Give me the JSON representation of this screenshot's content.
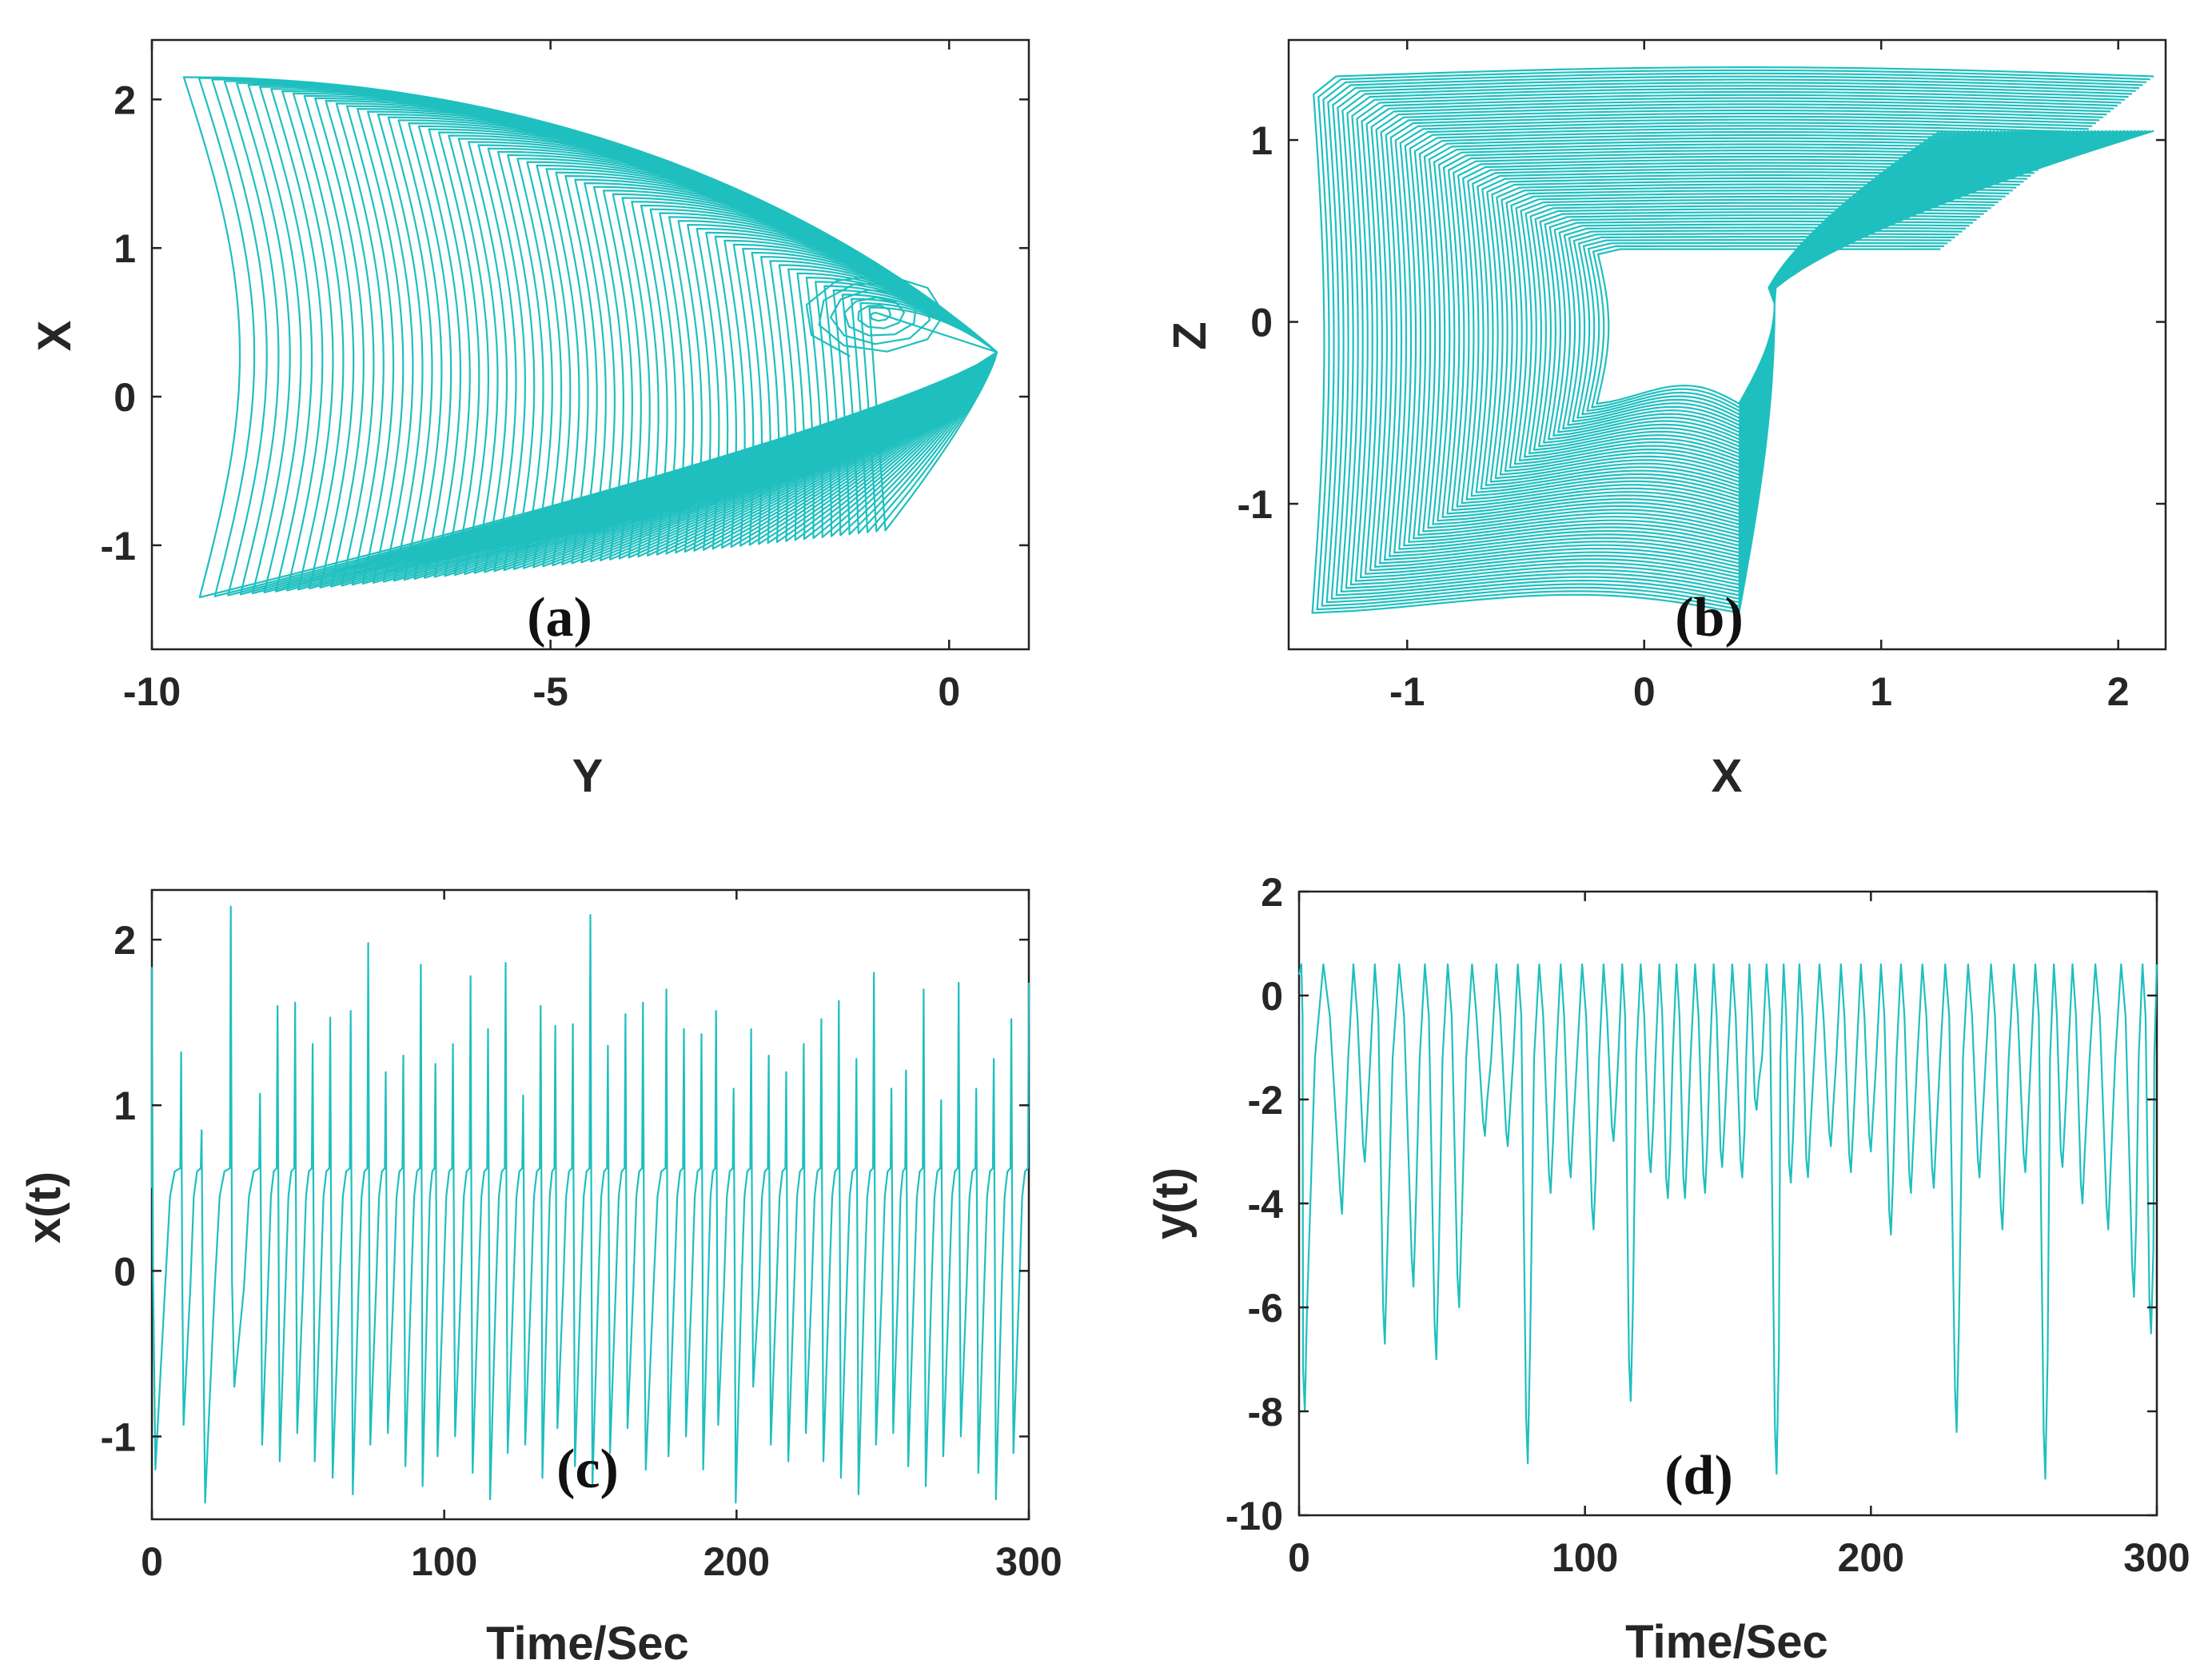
{
  "figure": {
    "line_color": "#1fbfbf"
  },
  "chart_data": [
    {
      "id": "a",
      "type": "line",
      "title": "",
      "panel_label": "(a)",
      "xlabel": "Y",
      "ylabel": "X",
      "xlim": [
        -10,
        1
      ],
      "ylim": [
        -1.7,
        2.4
      ],
      "xticks": [
        -10,
        -5,
        0
      ],
      "yticks": [
        -1,
        0,
        1,
        2
      ],
      "series": [
        {
          "name": "x vs y trajectory (phase portrait)",
          "note": "chaotic attractor; x range about -1.4 to 2.2, y range about -9.5 to 0.7"
        }
      ]
    },
    {
      "id": "b",
      "type": "line",
      "title": "",
      "panel_label": "(b)",
      "xlabel": "X",
      "ylabel": "Z",
      "xlim": [
        -1.5,
        2.2
      ],
      "ylim": [
        -1.8,
        1.55
      ],
      "xticks": [
        -1,
        0,
        1,
        2
      ],
      "yticks": [
        -1,
        0,
        1
      ],
      "series": [
        {
          "name": "z vs x trajectory (phase portrait)",
          "note": "chaotic attractor; x range about -1.4 to 2.15, z range about -1.6 to 1.35"
        }
      ]
    },
    {
      "id": "c",
      "type": "line",
      "title": "",
      "panel_label": "(c)",
      "xlabel": "Time/Sec",
      "ylabel": "x(t)",
      "xlim": [
        0,
        300
      ],
      "ylim": [
        -1.5,
        2.3
      ],
      "xticks": [
        0,
        100,
        200,
        300
      ],
      "yticks": [
        -1,
        0,
        1,
        2
      ],
      "series": [
        {
          "name": "x(t)",
          "x": [
            0,
            10,
            17,
            27,
            37,
            43,
            49,
            55,
            61,
            68,
            74,
            80,
            86,
            92,
            97,
            103,
            109,
            115,
            121,
            127,
            133,
            138,
            144,
            150,
            156,
            162,
            168,
            176,
            182,
            188,
            193,
            199,
            205,
            211,
            217,
            223,
            229,
            235,
            241,
            247,
            253,
            258,
            264,
            270,
            276,
            282,
            288,
            294,
            300
          ],
          "values": [
            1.83,
            1.32,
            0.85,
            2.2,
            1.07,
            1.6,
            1.62,
            1.37,
            1.53,
            1.57,
            1.98,
            1.2,
            1.3,
            1.85,
            1.25,
            1.37,
            1.78,
            1.46,
            1.86,
            1.06,
            1.6,
            1.48,
            1.49,
            2.15,
            1.36,
            1.55,
            1.62,
            1.7,
            1.46,
            1.43,
            1.57,
            1.1,
            1.46,
            1.3,
            1.2,
            1.37,
            1.52,
            1.63,
            1.28,
            1.8,
            1.1,
            1.21,
            1.7,
            1.03,
            1.74,
            1.1,
            1.28,
            1.52,
            1.74
          ],
          "troughs": [
            -1.2,
            -0.93,
            -1.4,
            -0.7,
            -1.05,
            -1.15,
            -0.98,
            -1.15,
            -1.25,
            -1.35,
            -1.05,
            -0.98,
            -1.18,
            -1.3,
            -1.12,
            -1.0,
            -1.22,
            -1.38,
            -1.1,
            -1.05,
            -1.25,
            -0.95,
            -1.18,
            -1.3,
            -1.1,
            -0.95,
            -1.2,
            -1.12,
            -1.0
          ]
        }
      ]
    },
    {
      "id": "d",
      "type": "line",
      "title": "",
      "panel_label": "(d)",
      "xlabel": "Time/Sec",
      "ylabel": "y(t)",
      "xlim": [
        0,
        300
      ],
      "ylim": [
        -10,
        2
      ],
      "xticks": [
        0,
        100,
        200,
        300
      ],
      "yticks": [
        -10,
        -8,
        -6,
        -4,
        -2,
        0,
        2
      ],
      "series": [
        {
          "name": "y(t)",
          "peak": 0.6,
          "t": [
            2,
            15,
            23,
            30,
            40,
            48,
            56,
            65,
            73,
            80,
            88,
            95,
            103,
            110,
            116,
            123,
            129,
            135,
            142,
            148,
            155,
            160,
            167,
            172,
            178,
            186,
            193,
            200,
            207,
            214,
            222,
            230,
            238,
            246,
            254,
            261,
            267,
            274,
            283,
            292,
            298
          ],
          "minima": [
            -8.0,
            -4.2,
            -3.2,
            -6.7,
            -5.6,
            -7.0,
            -6.0,
            -2.7,
            -2.9,
            -9.0,
            -3.8,
            -3.5,
            -4.5,
            -2.8,
            -7.8,
            -3.4,
            -3.9,
            -3.9,
            -3.8,
            -3.3,
            -3.5,
            -2.2,
            -9.2,
            -3.6,
            -3.5,
            -2.9,
            -3.4,
            -3.0,
            -4.6,
            -3.8,
            -3.7,
            -8.4,
            -3.5,
            -4.5,
            -3.4,
            -9.3,
            -3.3,
            -4.0,
            -4.5,
            -5.8,
            -6.5
          ]
        }
      ]
    }
  ]
}
